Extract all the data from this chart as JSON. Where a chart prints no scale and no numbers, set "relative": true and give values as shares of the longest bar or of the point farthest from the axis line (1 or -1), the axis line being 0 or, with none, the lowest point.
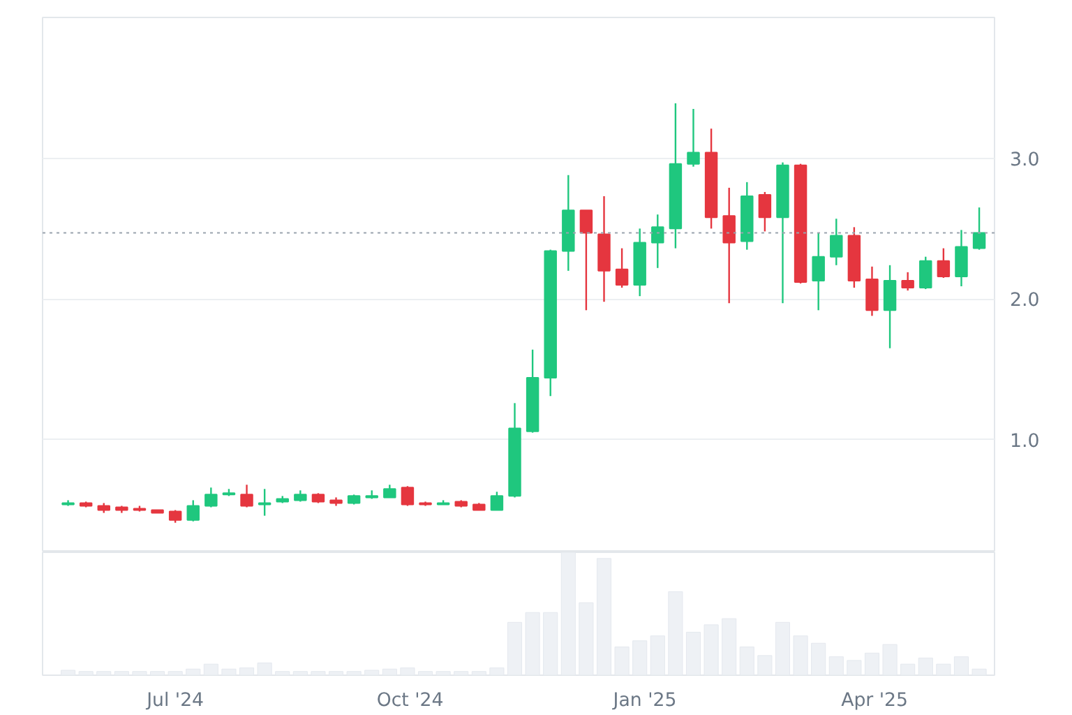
{
  "chart_data": [
    {
      "type": "candlestick",
      "x": [
        "2024-05-20",
        "2024-05-27",
        "2024-06-03",
        "2024-06-10",
        "2024-06-17",
        "2024-06-24",
        "2024-07-01",
        "2024-07-08",
        "2024-07-15",
        "2024-07-22",
        "2024-07-29",
        "2024-08-05",
        "2024-08-12",
        "2024-08-19",
        "2024-08-26",
        "2024-09-02",
        "2024-09-09",
        "2024-09-16",
        "2024-09-23",
        "2024-09-30",
        "2024-10-07",
        "2024-10-14",
        "2024-10-21",
        "2024-10-28",
        "2024-11-04",
        "2024-11-11",
        "2024-11-18",
        "2024-11-25",
        "2024-12-02",
        "2024-12-09",
        "2024-12-16",
        "2024-12-23",
        "2024-12-30",
        "2025-01-06",
        "2025-01-13",
        "2025-01-20",
        "2025-01-27",
        "2025-02-03",
        "2025-02-10",
        "2025-02-17",
        "2025-02-24",
        "2025-03-03",
        "2025-03-10",
        "2025-03-17",
        "2025-03-24",
        "2025-03-31",
        "2025-04-07",
        "2025-04-14",
        "2025-04-21",
        "2025-04-28",
        "2025-05-05",
        "2025-05-12"
      ],
      "ohlc": [
        [
          0.54,
          0.57,
          0.53,
          0.55
        ],
        [
          0.55,
          0.56,
          0.52,
          0.53
        ],
        [
          0.53,
          0.55,
          0.48,
          0.5
        ],
        [
          0.52,
          0.53,
          0.48,
          0.5
        ],
        [
          0.51,
          0.53,
          0.49,
          0.5
        ],
        [
          0.5,
          0.5,
          0.48,
          0.48
        ],
        [
          0.49,
          0.5,
          0.41,
          0.43
        ],
        [
          0.43,
          0.57,
          0.42,
          0.53
        ],
        [
          0.53,
          0.66,
          0.52,
          0.61
        ],
        [
          0.61,
          0.65,
          0.6,
          0.62
        ],
        [
          0.61,
          0.68,
          0.52,
          0.53
        ],
        [
          0.54,
          0.65,
          0.46,
          0.55
        ],
        [
          0.56,
          0.6,
          0.55,
          0.58
        ],
        [
          0.57,
          0.64,
          0.56,
          0.61
        ],
        [
          0.61,
          0.62,
          0.55,
          0.56
        ],
        [
          0.57,
          0.59,
          0.53,
          0.55
        ],
        [
          0.55,
          0.61,
          0.54,
          0.6
        ],
        [
          0.59,
          0.64,
          0.58,
          0.6
        ],
        [
          0.59,
          0.68,
          0.59,
          0.65
        ],
        [
          0.66,
          0.67,
          0.53,
          0.54
        ],
        [
          0.55,
          0.56,
          0.53,
          0.54
        ],
        [
          0.54,
          0.57,
          0.54,
          0.55
        ],
        [
          0.56,
          0.57,
          0.52,
          0.53
        ],
        [
          0.54,
          0.55,
          0.5,
          0.5
        ],
        [
          0.5,
          0.63,
          0.5,
          0.6
        ],
        [
          0.6,
          1.26,
          0.59,
          1.08
        ],
        [
          1.06,
          1.64,
          1.05,
          1.44
        ],
        [
          1.44,
          2.35,
          1.31,
          2.34
        ],
        [
          2.34,
          2.88,
          2.2,
          2.63
        ],
        [
          2.63,
          2.63,
          1.92,
          2.47
        ],
        [
          2.46,
          2.73,
          1.98,
          2.2
        ],
        [
          2.21,
          2.36,
          2.08,
          2.1
        ],
        [
          2.1,
          2.5,
          2.02,
          2.4
        ],
        [
          2.4,
          2.6,
          2.22,
          2.51
        ],
        [
          2.5,
          3.39,
          2.36,
          2.96
        ],
        [
          2.96,
          3.35,
          2.94,
          3.04
        ],
        [
          3.04,
          3.21,
          2.5,
          2.58
        ],
        [
          2.59,
          2.79,
          1.97,
          2.4
        ],
        [
          2.41,
          2.83,
          2.35,
          2.73
        ],
        [
          2.74,
          2.76,
          2.48,
          2.58
        ],
        [
          2.58,
          2.97,
          1.97,
          2.95
        ],
        [
          2.95,
          2.96,
          2.11,
          2.12
        ],
        [
          2.13,
          2.47,
          1.92,
          2.3
        ],
        [
          2.3,
          2.57,
          2.24,
          2.45
        ],
        [
          2.45,
          2.51,
          2.08,
          2.13
        ],
        [
          2.14,
          2.23,
          1.88,
          1.92
        ],
        [
          1.92,
          2.24,
          1.65,
          2.13
        ],
        [
          2.13,
          2.19,
          2.06,
          2.08
        ],
        [
          2.08,
          2.3,
          2.07,
          2.27
        ],
        [
          2.27,
          2.36,
          2.15,
          2.16
        ],
        [
          2.16,
          2.49,
          2.09,
          2.37
        ],
        [
          2.36,
          2.65,
          2.35,
          2.47
        ]
      ],
      "colors": [
        "#1fc77e",
        "#e5363f",
        "#e5363f",
        "#e5363f",
        "#e5363f",
        "#e5363f",
        "#e5363f",
        "#1fc77e",
        "#1fc77e",
        "#1fc77e",
        "#e5363f",
        "#1fc77e",
        "#1fc77e",
        "#1fc77e",
        "#e5363f",
        "#e5363f",
        "#1fc77e",
        "#1fc77e",
        "#1fc77e",
        "#e5363f",
        "#e5363f",
        "#1fc77e",
        "#e5363f",
        "#e5363f",
        "#1fc77e",
        "#1fc77e",
        "#1fc77e",
        "#1fc77e",
        "#1fc77e",
        "#e5363f",
        "#e5363f",
        "#e5363f",
        "#1fc77e",
        "#1fc77e",
        "#1fc77e",
        "#1fc77e",
        "#e5363f",
        "#e5363f",
        "#1fc77e",
        "#e5363f",
        "#1fc77e",
        "#e5363f",
        "#1fc77e",
        "#1fc77e",
        "#e5363f",
        "#e5363f",
        "#1fc77e",
        "#e5363f",
        "#1fc77e",
        "#e5363f",
        "#1fc77e",
        "#1fc77e"
      ],
      "xlim": [
        "2024-05-10",
        "2025-05-18"
      ],
      "ylim": [
        0.2,
        4.0
      ],
      "yticks": [
        {
          "value": 1,
          "label": "1.0"
        },
        {
          "value": 2,
          "label": "2.0"
        },
        {
          "value": 3,
          "label": "3.0"
        }
      ],
      "grid": "y",
      "tick_labels": "y",
      "ref_lines": [
        {
          "axis": "y",
          "value": 2.47,
          "color": "#9aa3ad",
          "line_style": "dotted"
        }
      ]
    },
    {
      "type": "bar",
      "relative": true,
      "color": "#eef1f5",
      "x": [
        "2024-05-20",
        "2024-05-27",
        "2024-06-03",
        "2024-06-10",
        "2024-06-17",
        "2024-06-24",
        "2024-07-01",
        "2024-07-08",
        "2024-07-15",
        "2024-07-22",
        "2024-07-29",
        "2024-08-05",
        "2024-08-12",
        "2024-08-19",
        "2024-08-26",
        "2024-09-02",
        "2024-09-09",
        "2024-09-16",
        "2024-09-23",
        "2024-09-30",
        "2024-10-07",
        "2024-10-14",
        "2024-10-21",
        "2024-10-28",
        "2024-11-04",
        "2024-11-11",
        "2024-11-18",
        "2024-11-25",
        "2024-12-02",
        "2024-12-09",
        "2024-12-16",
        "2024-12-23",
        "2024-12-30",
        "2025-01-06",
        "2025-01-13",
        "2025-01-20",
        "2025-01-27",
        "2025-02-03",
        "2025-02-10",
        "2025-02-17",
        "2025-02-24",
        "2025-03-03",
        "2025-03-10",
        "2025-03-17",
        "2025-03-24",
        "2025-03-31",
        "2025-04-07",
        "2025-04-14",
        "2025-04-21",
        "2025-04-28",
        "2025-05-05",
        "2025-05-12"
      ],
      "values": [
        0.04,
        0.03,
        0.03,
        0.03,
        0.03,
        0.03,
        0.03,
        0.05,
        0.09,
        0.05,
        0.06,
        0.1,
        0.03,
        0.03,
        0.03,
        0.03,
        0.03,
        0.04,
        0.05,
        0.06,
        0.03,
        0.03,
        0.03,
        0.03,
        0.06,
        0.43,
        0.51,
        0.51,
        1.0,
        0.59,
        0.95,
        0.23,
        0.28,
        0.32,
        0.68,
        0.35,
        0.41,
        0.46,
        0.23,
        0.16,
        0.43,
        0.32,
        0.26,
        0.15,
        0.12,
        0.18,
        0.25,
        0.09,
        0.14,
        0.09,
        0.15,
        0.05
      ],
      "xlim": [
        "2024-05-10",
        "2025-05-18"
      ],
      "xticks": [
        {
          "value": "2024-07-01",
          "label": "Jul '24"
        },
        {
          "value": "2024-10-01",
          "label": "Oct '24"
        },
        {
          "value": "2025-01-01",
          "label": "Jan '25"
        },
        {
          "value": "2025-04-01",
          "label": "Apr '25"
        }
      ],
      "grid": false
    }
  ]
}
